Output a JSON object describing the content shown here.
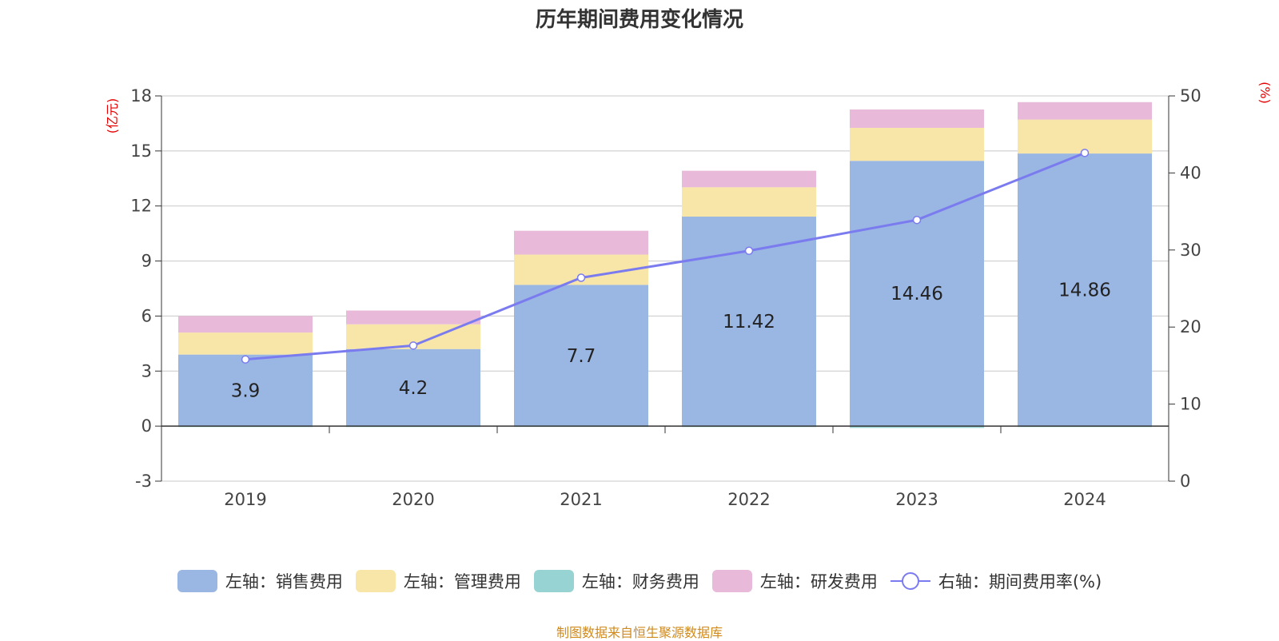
{
  "title": "历年期间费用变化情况",
  "source_note": "制图数据来自恒生聚源数据库",
  "colors": {
    "sales": "#9ab6e2",
    "admin": "#f7e6a8",
    "finance": "#98d3d3",
    "rd": "#e8b9d8",
    "rate": "#7b7bf0",
    "unit": "#e60000",
    "source": "#d08a1e",
    "axis_text": "#444444",
    "grid": "#c8c8c8"
  },
  "chart_data": {
    "type": "bar",
    "title": "历年期间费用变化情况",
    "categories": [
      "2019",
      "2020",
      "2021",
      "2022",
      "2023",
      "2024"
    ],
    "left_axis": {
      "unit_label": "(亿元)",
      "ylim": [
        -3,
        18
      ],
      "ticks": [
        -3,
        0,
        3,
        6,
        9,
        12,
        15,
        18
      ]
    },
    "right_axis": {
      "unit_label": "(%)",
      "ylim": [
        0,
        50
      ],
      "ticks": [
        0,
        10,
        20,
        30,
        40,
        50
      ]
    },
    "series": [
      {
        "name": "左轴：销售费用",
        "key": "sales",
        "type": "bar",
        "axis": "left",
        "values": [
          3.9,
          4.2,
          7.7,
          11.42,
          14.46,
          14.86
        ],
        "data_labels": [
          "3.9",
          "4.2",
          "7.7",
          "11.42",
          "14.46",
          "14.86"
        ]
      },
      {
        "name": "左轴：管理费用",
        "key": "admin",
        "type": "bar",
        "axis": "left",
        "values": [
          1.2,
          1.35,
          1.65,
          1.6,
          1.8,
          1.85
        ]
      },
      {
        "name": "左轴：财务费用",
        "key": "finance",
        "type": "bar",
        "axis": "left",
        "values": [
          -0.05,
          -0.05,
          -0.03,
          -0.05,
          -0.1,
          -0.05
        ]
      },
      {
        "name": "左轴：研发费用",
        "key": "rd",
        "type": "bar",
        "axis": "left",
        "values": [
          0.9,
          0.75,
          1.3,
          0.9,
          1.0,
          0.95
        ]
      },
      {
        "name": "右轴：期间费用率(%)",
        "key": "rate",
        "type": "line",
        "axis": "right",
        "values": [
          15.8,
          17.6,
          26.4,
          29.9,
          33.9,
          42.6
        ]
      }
    ],
    "legend_position": "bottom",
    "grid": true
  }
}
